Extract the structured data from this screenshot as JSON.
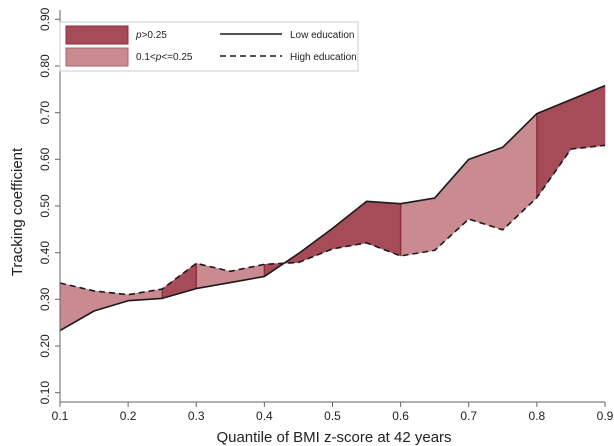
{
  "chart_data": {
    "type": "area",
    "xlabel": "Quantile of BMI z-score at 42 years",
    "ylabel": "Tracking coefficient",
    "xlim": [
      0.1,
      0.9
    ],
    "ylim": [
      0.08,
      0.92
    ],
    "x_ticks": [
      "0.1",
      "0.2",
      "0.3",
      "0.4",
      "0.5",
      "0.6",
      "0.7",
      "0.8",
      "0.9"
    ],
    "y_ticks": [
      "0.10",
      "0.20",
      "0.30",
      "0.40",
      "0.50",
      "0.60",
      "0.70",
      "0.80",
      "0.90"
    ],
    "grid": false,
    "legend_position": "top-left",
    "x": [
      0.1,
      0.15,
      0.2,
      0.25,
      0.3,
      0.35,
      0.4,
      0.45,
      0.5,
      0.55,
      0.6,
      0.65,
      0.7,
      0.75,
      0.8,
      0.85,
      0.9
    ],
    "series": [
      {
        "name": "Low education",
        "line_style": "solid",
        "values": [
          0.233,
          0.275,
          0.297,
          0.302,
          0.323,
          0.336,
          0.349,
          0.398,
          0.452,
          0.51,
          0.505,
          0.517,
          0.6,
          0.626,
          0.698,
          0.728,
          0.758
        ]
      },
      {
        "name": "High education",
        "line_style": "dashed",
        "values": [
          0.335,
          0.318,
          0.31,
          0.322,
          0.377,
          0.36,
          0.375,
          0.379,
          0.408,
          0.421,
          0.393,
          0.405,
          0.472,
          0.449,
          0.518,
          0.622,
          0.63
        ]
      }
    ],
    "bands": [
      {
        "label_pre": "p",
        "label_post": ">0.25",
        "color": "#a54c58"
      },
      {
        "label_pre": "0.1<",
        "label_mid": "p",
        "label_post": "<=0.25",
        "color": "#c98a90"
      }
    ],
    "segment_band": [
      1,
      1,
      1,
      0,
      1,
      1,
      0,
      0,
      0,
      0,
      1,
      1,
      1,
      1,
      0,
      0
    ],
    "colors": {
      "line": "#1a1a1a",
      "divider": "#8a2c3a",
      "axis": "#666666"
    }
  }
}
